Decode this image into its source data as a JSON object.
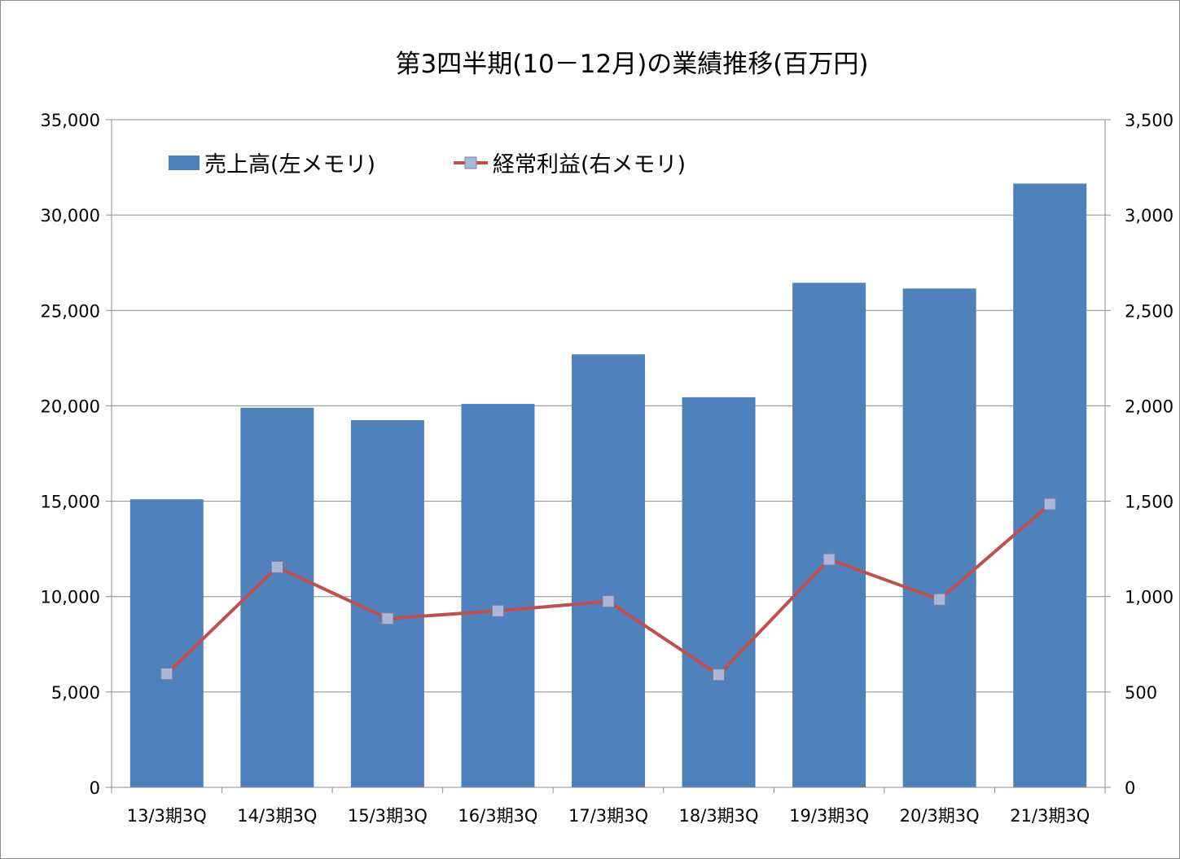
{
  "chart_data": {
    "type": "bar",
    "title": "第3四半期(10－12月)の業績推移(百万円)",
    "categories": [
      "13/3期3Q",
      "14/3期3Q",
      "15/3期3Q",
      "16/3期3Q",
      "17/3期3Q",
      "18/3期3Q",
      "19/3期3Q",
      "20/3期3Q",
      "21/3期3Q"
    ],
    "series": [
      {
        "name": "売上高(左メモリ)",
        "type": "bar",
        "axis": "left",
        "color": "#4f81bd",
        "values": [
          15100,
          19900,
          19250,
          20100,
          22700,
          20450,
          26450,
          26150,
          31650
        ]
      },
      {
        "name": "経常利益(右メモリ)",
        "type": "line",
        "axis": "right",
        "color": "#c0504d",
        "marker_color": "#a9b8d9",
        "values": [
          595,
          1155,
          885,
          925,
          975,
          590,
          1195,
          985,
          1485
        ]
      }
    ],
    "ylim_left": [
      0,
      35000
    ],
    "ylim_right": [
      0,
      3500
    ],
    "yticks_left": [
      "0",
      "5,000",
      "10,000",
      "15,000",
      "20,000",
      "25,000",
      "30,000",
      "35,000"
    ],
    "yticks_right": [
      "0",
      "500",
      "1,000",
      "1,500",
      "2,000",
      "2,500",
      "3,000",
      "3,500"
    ],
    "grid": true,
    "legend_position": "top-left"
  }
}
